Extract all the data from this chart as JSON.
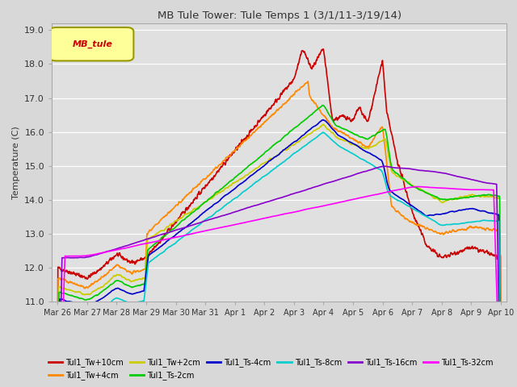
{
  "title": "MB Tule Tower: Tule Temps 1 (3/1/11-3/19/14)",
  "ylabel": "Temperature (C)",
  "ylim": [
    11.0,
    19.2
  ],
  "yticks": [
    11.0,
    12.0,
    13.0,
    14.0,
    15.0,
    16.0,
    17.0,
    18.0,
    19.0
  ],
  "bg_color": "#d8d8d8",
  "plot_bg": "#e0e0e0",
  "series": [
    {
      "label": "Tul1_Tw+10cm",
      "color": "#cc0000",
      "lw": 1.2
    },
    {
      "label": "Tul1_Tw+4cm",
      "color": "#ff8800",
      "lw": 1.2
    },
    {
      "label": "Tul1_Tw+2cm",
      "color": "#cccc00",
      "lw": 1.2
    },
    {
      "label": "Tul1_Ts-2cm",
      "color": "#00cc00",
      "lw": 1.2
    },
    {
      "label": "Tul1_Ts-4cm",
      "color": "#0000cc",
      "lw": 1.2
    },
    {
      "label": "Tul1_Ts-8cm",
      "color": "#00cccc",
      "lw": 1.2
    },
    {
      "label": "Tul1_Ts-16cm",
      "color": "#8800cc",
      "lw": 1.2
    },
    {
      "label": "Tul1_Ts-32cm",
      "color": "#ff00ff",
      "lw": 1.2
    }
  ],
  "x_tick_labels": [
    "Mar 26",
    "Mar 27",
    "Mar 28",
    "Mar 29",
    "Mar 30",
    "Mar 31",
    "Apr 1",
    "Apr 2",
    "Apr 3",
    "Apr 4",
    "Apr 5",
    "Apr 6",
    "Apr 7",
    "Apr 8",
    "Apr 9",
    "Apr 10"
  ],
  "legend_label": "MB_tule",
  "legend_color": "#cc0000",
  "legend_bg": "#ffff99",
  "legend_border": "#999900"
}
